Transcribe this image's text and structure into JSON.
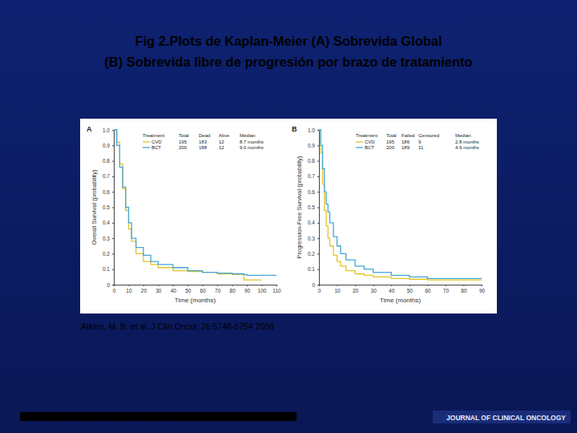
{
  "page": {
    "title": [
      "Fig 2.Plots de  Kaplan-Meier (A) Sobrevida Global",
      "(B)  Sobrevida libre de progresión por brazo de tratamiento"
    ],
    "citation": "Atkins, M. B. et al. J Clin Oncol; 26:5748-5754 2008",
    "footer": "JOURNAL OF CLINICAL ONCOLOGY"
  },
  "chart_data": [
    {
      "type": "line",
      "panel": "A",
      "x_label": "Time (months)",
      "y_label": "Overall Survival (probability)",
      "x": [
        0,
        2,
        4,
        6,
        8,
        10,
        12,
        15,
        20,
        25,
        30,
        40,
        50,
        60,
        70,
        80,
        88,
        90,
        100,
        110
      ],
      "series": [
        {
          "name": "CVD",
          "color": "#e3c42a",
          "line_style": "step",
          "values": [
            1.0,
            0.92,
            0.78,
            0.62,
            0.48,
            0.36,
            0.28,
            0.2,
            0.15,
            0.13,
            0.11,
            0.09,
            0.085,
            0.08,
            0.07,
            0.065,
            0.03,
            0.03,
            0.03,
            null
          ]
        },
        {
          "name": "BCT",
          "color": "#45a6d8",
          "line_style": "step",
          "values": [
            1.0,
            0.9,
            0.76,
            0.63,
            0.5,
            0.4,
            0.3,
            0.24,
            0.19,
            0.15,
            0.13,
            0.11,
            0.09,
            0.08,
            0.075,
            0.07,
            0.065,
            0.06,
            0.06,
            0.06
          ]
        }
      ],
      "xlim": [
        0,
        110
      ],
      "xticks": [
        0,
        10,
        20,
        30,
        40,
        50,
        60,
        70,
        80,
        90,
        100,
        110
      ],
      "ylim": [
        0,
        1
      ],
      "yticks": [
        0,
        0.1,
        0.2,
        0.3,
        0.4,
        0.5,
        0.6,
        0.7,
        0.8,
        0.9,
        {
          "value": 1,
          "label": "1.0"
        }
      ],
      "table": {
        "header": [
          "Treatment",
          "Total",
          "Dead",
          "Alive",
          "Median"
        ],
        "rows": [
          [
            195,
            183,
            12,
            "8.7 months"
          ],
          [
            200,
            188,
            12,
            "9.0 months"
          ]
        ]
      }
    },
    {
      "type": "line",
      "panel": "B",
      "x_label": "Time (months)",
      "y_label": "Progression-Free Survival (probability)",
      "x": [
        0,
        1,
        2,
        3,
        4,
        5,
        6,
        8,
        10,
        12,
        15,
        20,
        25,
        30,
        40,
        50,
        60,
        70,
        80,
        90
      ],
      "series": [
        {
          "name": "CVD",
          "color": "#e3c42a",
          "line_style": "step",
          "values": [
            1.0,
            0.85,
            0.65,
            0.48,
            0.38,
            0.3,
            0.25,
            0.19,
            0.15,
            0.12,
            0.09,
            0.07,
            0.06,
            0.05,
            0.04,
            0.035,
            0.03,
            0.03,
            0.03,
            0.03
          ]
        },
        {
          "name": "BCT",
          "color": "#45a6d8",
          "line_style": "step",
          "values": [
            1.0,
            0.9,
            0.75,
            0.6,
            0.52,
            0.47,
            0.4,
            0.31,
            0.25,
            0.2,
            0.16,
            0.12,
            0.1,
            0.08,
            0.06,
            0.05,
            0.04,
            0.04,
            0.04,
            0.04
          ]
        }
      ],
      "xlim": [
        0,
        90
      ],
      "xticks": [
        0,
        10,
        20,
        30,
        40,
        50,
        60,
        70,
        80,
        90
      ],
      "ylim": [
        0,
        1
      ],
      "yticks": [
        0,
        0.1,
        0.2,
        0.3,
        0.4,
        0.5,
        0.6,
        0.7,
        0.8,
        0.9,
        {
          "value": 1,
          "label": "1.0"
        }
      ],
      "table": {
        "header": [
          "Treatment",
          "Total",
          "Failed",
          "Censored",
          "Median"
        ],
        "rows": [
          [
            195,
            186,
            9,
            "2.8 months"
          ],
          [
            200,
            189,
            11,
            "4.9 months"
          ]
        ]
      }
    }
  ]
}
